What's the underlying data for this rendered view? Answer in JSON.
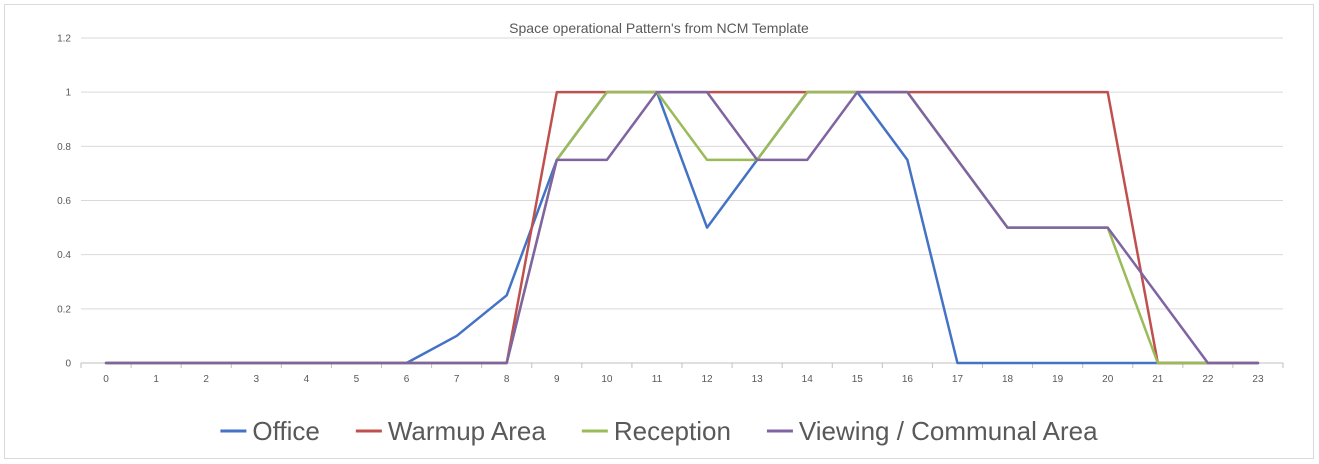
{
  "chart_data": {
    "type": "line",
    "title": "Space operational Pattern's from NCM Template",
    "xlabel": "",
    "ylabel": "",
    "x": [
      0,
      1,
      2,
      3,
      4,
      5,
      6,
      7,
      8,
      9,
      10,
      11,
      12,
      13,
      14,
      15,
      16,
      17,
      18,
      19,
      20,
      21,
      22,
      23
    ],
    "x_tick_labels": [
      "0",
      "1",
      "2",
      "3",
      "4",
      "5",
      "6",
      "7",
      "8",
      "9",
      "10",
      "11",
      "12",
      "13",
      "14",
      "15",
      "16",
      "17",
      "18",
      "19",
      "20",
      "21",
      "22",
      "23"
    ],
    "ylim": [
      0,
      1.2
    ],
    "y_ticks": [
      0,
      0.2,
      0.4,
      0.6,
      0.8,
      1,
      1.2
    ],
    "y_tick_labels": [
      "0",
      "0.2",
      "0.4",
      "0.6",
      "0.8",
      "1",
      "1.2"
    ],
    "grid": true,
    "legend_position": "bottom",
    "series": [
      {
        "name": "Office",
        "color": "#4472c4",
        "values": [
          0,
          0,
          0,
          0,
          0,
          0,
          0,
          0.1,
          0.25,
          0.75,
          1,
          1,
          0.5,
          0.75,
          1,
          1,
          0.75,
          0,
          0,
          0,
          0,
          0,
          0,
          0
        ]
      },
      {
        "name": "Warmup Area",
        "color": "#c0504d",
        "values": [
          0,
          0,
          0,
          0,
          0,
          0,
          0,
          0,
          0,
          1,
          1,
          1,
          1,
          1,
          1,
          1,
          1,
          1,
          1,
          1,
          1,
          0,
          0,
          0
        ]
      },
      {
        "name": "Reception",
        "color": "#9bbb59",
        "values": [
          0,
          0,
          0,
          0,
          0,
          0,
          0,
          0,
          0,
          0.75,
          1,
          1,
          0.75,
          0.75,
          1,
          1,
          1,
          0.75,
          0.5,
          0.5,
          0.5,
          0,
          0,
          0
        ]
      },
      {
        "name": "Viewing / Communal Area",
        "color": "#8064a2",
        "values": [
          0,
          0,
          0,
          0,
          0,
          0,
          0,
          0,
          0,
          0.75,
          0.75,
          1,
          1,
          0.75,
          0.75,
          1,
          1,
          0.75,
          0.5,
          0.5,
          0.5,
          0.25,
          0,
          0
        ]
      }
    ]
  }
}
